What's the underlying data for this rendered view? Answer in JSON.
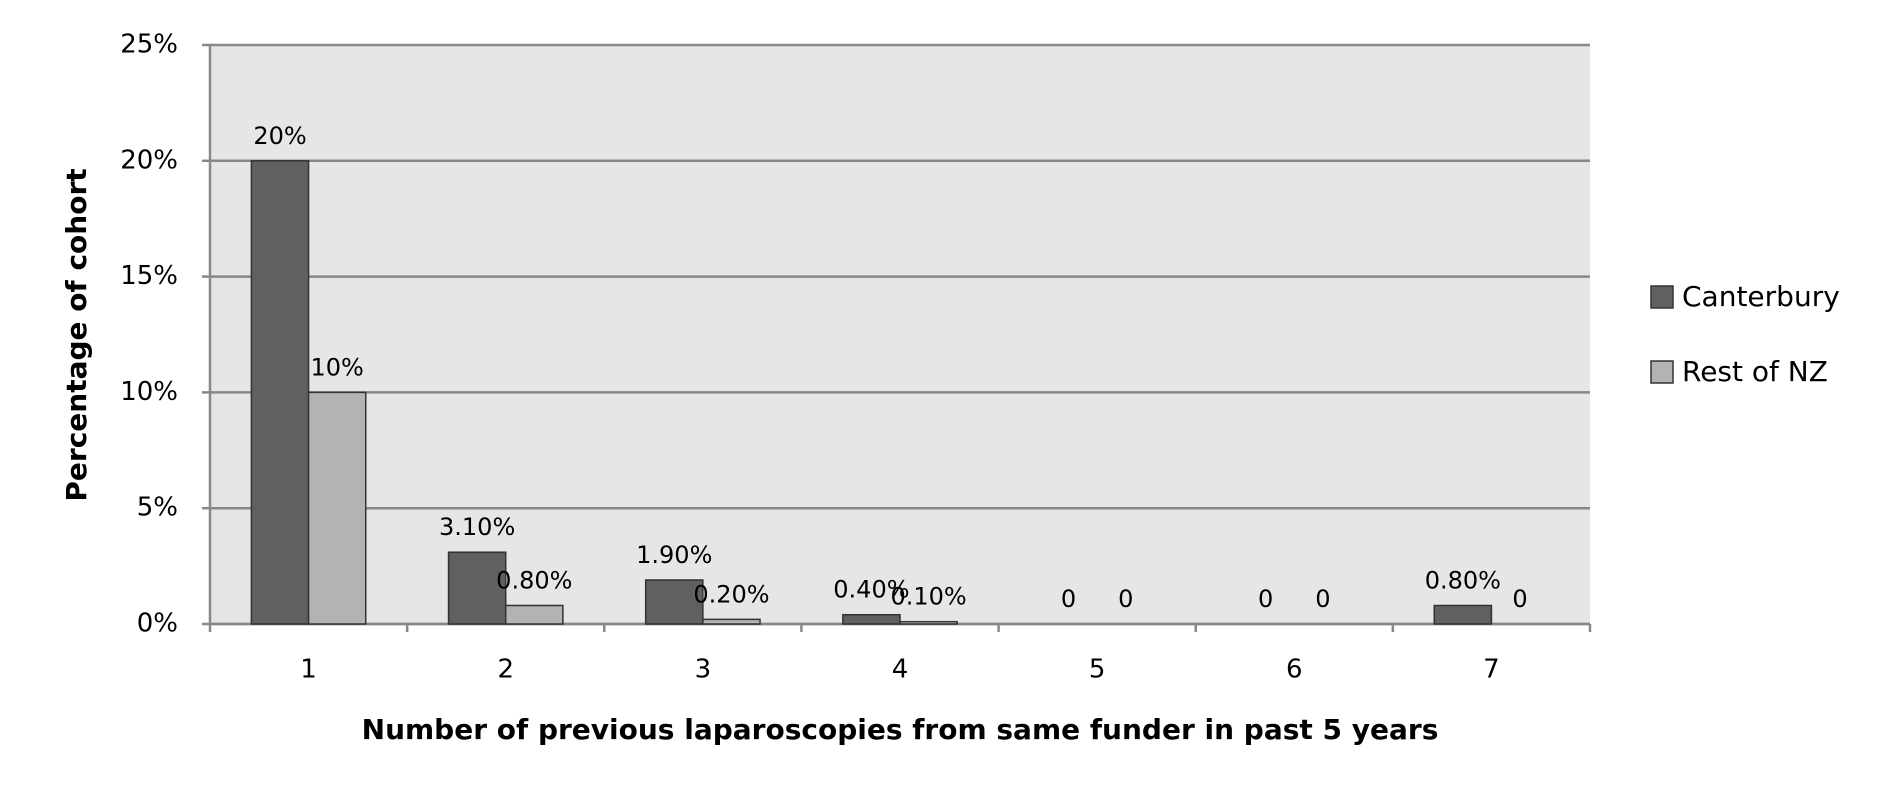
{
  "chart_data": {
    "type": "bar",
    "x_label": "Number of previous laparoscopies from same funder in past 5 years",
    "y_label": "Percentage of cohort",
    "categories": [
      "1",
      "2",
      "3",
      "4",
      "5",
      "6",
      "7"
    ],
    "series": [
      {
        "name": "Canterbury",
        "color": "#606060",
        "values": [
          20,
          3.1,
          1.9,
          0.4,
          0,
          0,
          0.8
        ],
        "value_labels": [
          "20%",
          "3.10%",
          "1.90%",
          "0.40%",
          "0",
          "0",
          "0.80%"
        ]
      },
      {
        "name": "Rest of NZ",
        "color": "#b3b3b3",
        "values": [
          10,
          0.8,
          0.2,
          0.1,
          0,
          0,
          0
        ],
        "value_labels": [
          "10%",
          "0.80%",
          "0.20%",
          "0.10%",
          "0",
          "0",
          "0"
        ]
      }
    ],
    "ylim": [
      0,
      25
    ],
    "yticks": [
      {
        "value": 0,
        "label": "0%"
      },
      {
        "value": 5,
        "label": "5%"
      },
      {
        "value": 10,
        "label": "10%"
      },
      {
        "value": 15,
        "label": "15%"
      },
      {
        "value": 20,
        "label": "20%"
      },
      {
        "value": 25,
        "label": "25%"
      }
    ],
    "grid": true,
    "legend": "right"
  }
}
